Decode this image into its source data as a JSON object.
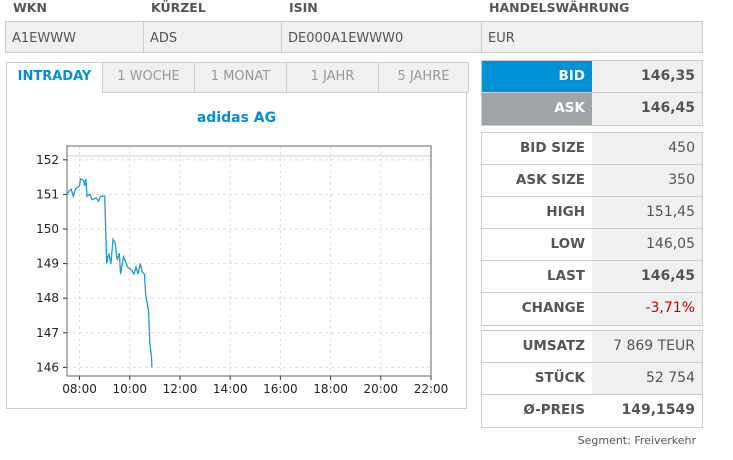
{
  "identifiers": {
    "headers": [
      "WKN",
      "KÜRZEL",
      "ISIN",
      "HANDELSWÄHRUNG"
    ],
    "values": [
      "A1EWWW",
      "ADS",
      "DE000A1EWWW0",
      "EUR"
    ]
  },
  "tabs": [
    {
      "label": "INTRADAY",
      "active": true
    },
    {
      "label": "1 WOCHE"
    },
    {
      "label": "1 MONAT"
    },
    {
      "label": "1 JAHR"
    },
    {
      "label": "5 JAHRE"
    }
  ],
  "quote": {
    "bid_label": "BID",
    "bid": "146,35",
    "ask_label": "ASK",
    "ask": "146,45",
    "bid_color": "#0090d6",
    "ask_color": "#a0a4a8"
  },
  "stats": [
    {
      "label": "BID SIZE",
      "value": "450"
    },
    {
      "label": "ASK SIZE",
      "value": "350"
    },
    {
      "label": "HIGH",
      "value": "151,45"
    },
    {
      "label": "LOW",
      "value": "146,05"
    },
    {
      "label": "LAST",
      "value": "146,45"
    },
    {
      "label": "CHANGE",
      "value": "-3,71%",
      "color": "#cc0000"
    }
  ],
  "volume": [
    {
      "label": "UMSATZ",
      "value": "7 869 TEUR"
    },
    {
      "label": "STÜCK",
      "value": "52 754"
    },
    {
      "label": "Ø-PREIS",
      "value": "149,1549"
    }
  ],
  "segment": "Segment: Freiverkehr",
  "chart_data": {
    "type": "line",
    "title": "adidas AG",
    "ylim": [
      145.75,
      152.4
    ],
    "xlim": [
      "07:30",
      "22:00"
    ],
    "grid": true,
    "yticks": [
      "146",
      "147",
      "148",
      "149",
      "150",
      "151",
      "152"
    ],
    "xticks": [
      "08:00",
      "10:00",
      "12:00",
      "14:00",
      "16:00",
      "18:00",
      "20:00",
      "22:00"
    ],
    "line_color": "#1a9ad8",
    "x": [
      "07:30",
      "07:35",
      "07:40",
      "07:45",
      "07:50",
      "08:00",
      "08:02",
      "08:10",
      "08:12",
      "08:15",
      "08:18",
      "08:25",
      "08:30",
      "08:40",
      "08:45",
      "08:50",
      "09:00",
      "09:05",
      "09:10",
      "09:15",
      "09:20",
      "09:25",
      "09:30",
      "09:35",
      "09:38",
      "09:45",
      "09:55",
      "10:05",
      "10:10",
      "10:15",
      "10:20",
      "10:25",
      "10:30",
      "10:35",
      "10:38",
      "10:45",
      "10:48",
      "10:52",
      "10:53"
    ],
    "y": [
      151.0,
      151.1,
      151.15,
      150.95,
      151.15,
      151.25,
      151.45,
      151.4,
      151.25,
      151.45,
      150.95,
      151.0,
      150.85,
      150.9,
      150.8,
      150.95,
      150.95,
      149.0,
      149.3,
      149.0,
      149.7,
      149.6,
      149.1,
      149.3,
      148.7,
      149.2,
      148.9,
      148.8,
      148.7,
      148.9,
      148.7,
      149.0,
      148.75,
      148.7,
      148.1,
      147.6,
      146.7,
      146.3,
      146.0
    ]
  }
}
